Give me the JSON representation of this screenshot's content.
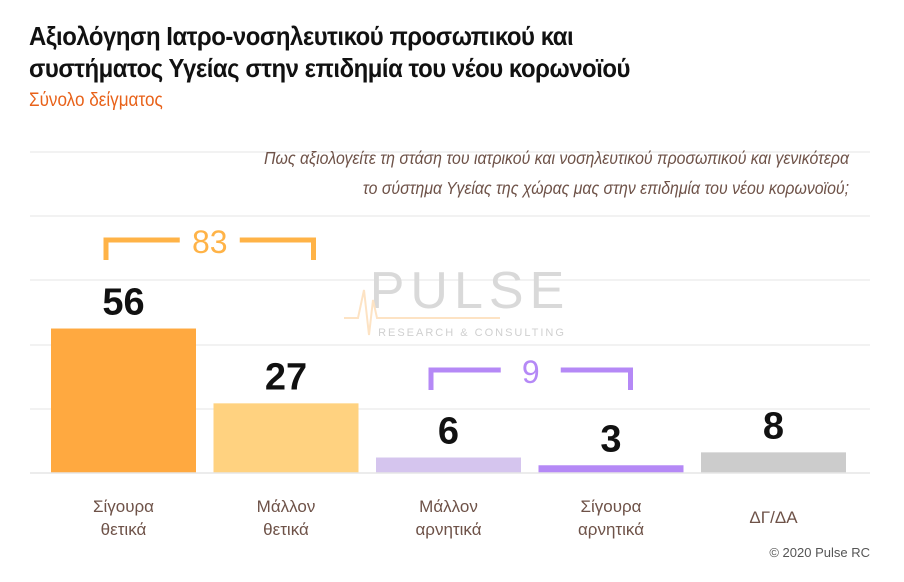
{
  "title_line1": "Αξιολόγηση Ιατρο-νοσηλευτικού προσωπικού και",
  "title_line2": "συστήματος Υγείας στην επιδημία του νέου κορωνοϊού",
  "subtitle": "Σύνολο δείγματος",
  "question_line1": "Πως αξιολογείτε τη στάση του ιατρικού και νοσηλευτικού προσωπικού και γενικότερα",
  "question_line2": "το σύστημα Υγείας της χώρας μας στην επιδημία του νέου κορωνοϊού;",
  "footer": "© 2020 Pulse RC",
  "watermark": {
    "name": "PULSE",
    "tagline": "RESEARCH & CONSULTING"
  },
  "chart_data": {
    "type": "bar",
    "categories": [
      [
        "Σίγουρα",
        "θετικά"
      ],
      [
        "Μάλλον",
        "θετικά"
      ],
      [
        "Μάλλον",
        "αρνητικά"
      ],
      [
        "Σίγουρα",
        "αρνητικά"
      ],
      [
        "ΔΓ/ΔΑ"
      ]
    ],
    "values": [
      56,
      27,
      6,
      3,
      8
    ],
    "colors": [
      "#FFA940",
      "#FFD280",
      "#D5C5EE",
      "#B589F6",
      "#CCCCCC"
    ],
    "ylim": [
      0,
      125
    ],
    "groups": [
      {
        "label": "83",
        "from": 0,
        "to": 1,
        "color": "#FFB347"
      },
      {
        "label": "9",
        "from": 2,
        "to": 3,
        "color": "#B589F6"
      }
    ],
    "grid": true
  }
}
